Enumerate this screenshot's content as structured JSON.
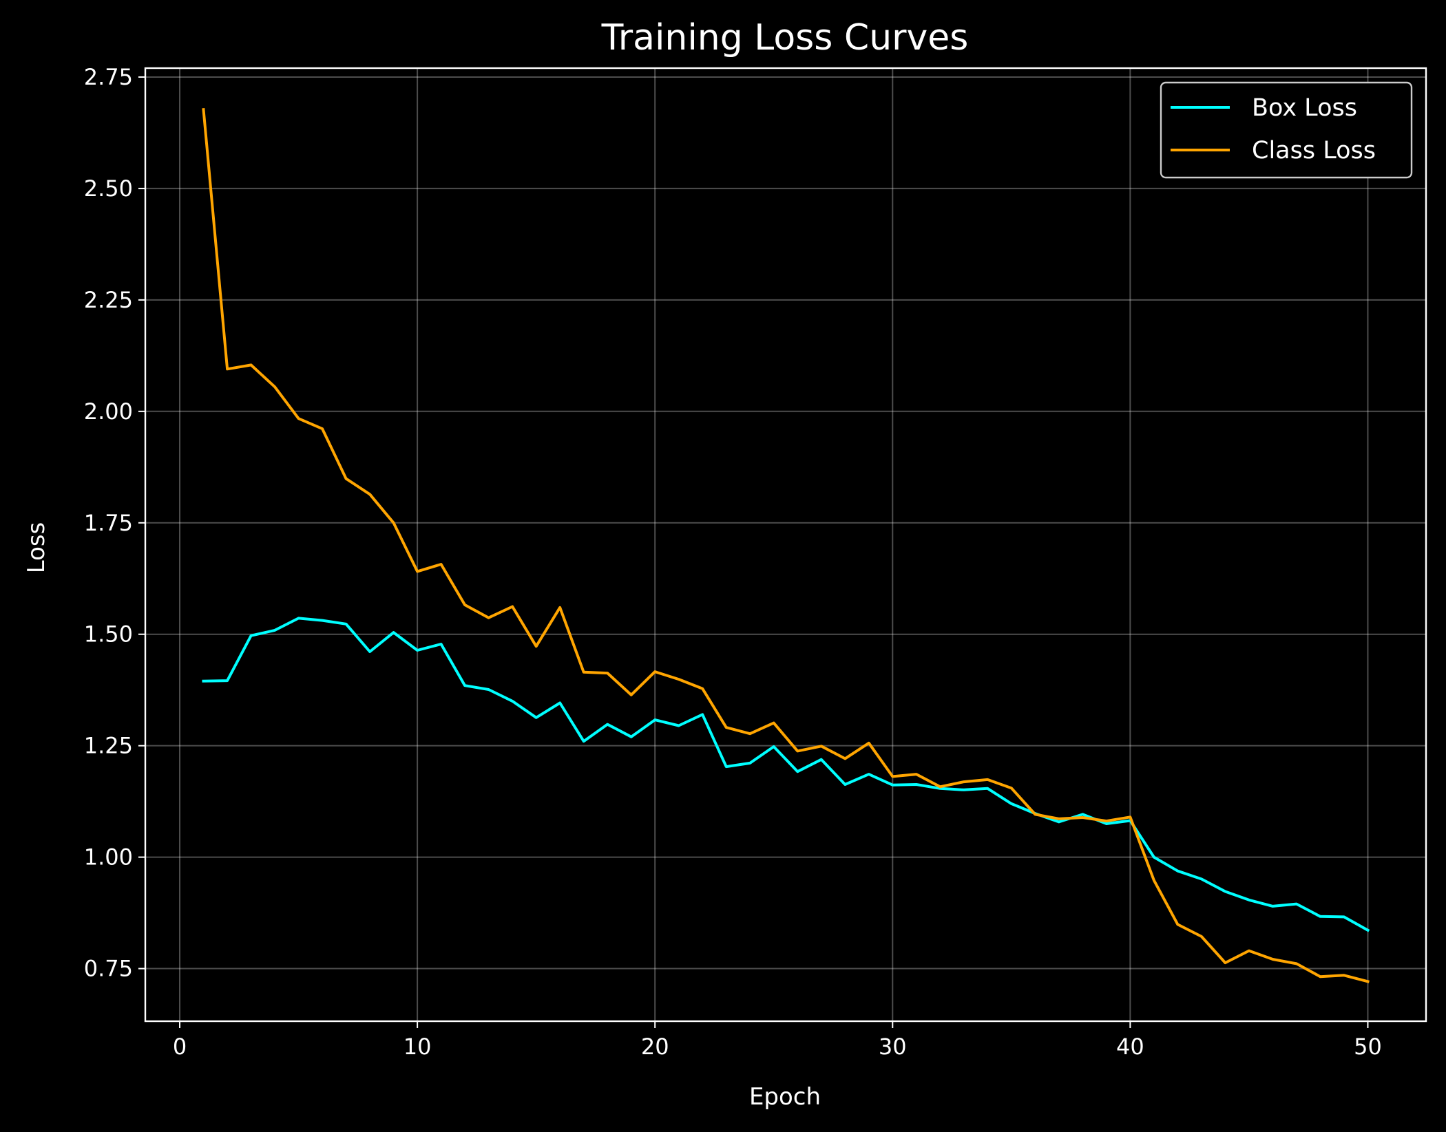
{
  "chart_data": {
    "type": "line",
    "title": "Training Loss Curves",
    "xlabel": "Epoch",
    "ylabel": "Loss",
    "xlim": [
      -1.45,
      52.45
    ],
    "ylim": [
      0.632,
      2.77
    ],
    "xticks": [
      0,
      10,
      20,
      30,
      40,
      50
    ],
    "yticks": [
      0.75,
      1.0,
      1.25,
      1.5,
      1.75,
      2.0,
      2.25,
      2.5,
      2.75
    ],
    "ytick_labels": [
      "0.75",
      "1.00",
      "1.25",
      "1.50",
      "1.75",
      "2.00",
      "2.25",
      "2.50",
      "2.75"
    ],
    "grid": true,
    "legend_position": "top-right",
    "x": [
      1,
      2,
      3,
      4,
      5,
      6,
      7,
      8,
      9,
      10,
      11,
      12,
      13,
      14,
      15,
      16,
      17,
      18,
      19,
      20,
      21,
      22,
      23,
      24,
      25,
      26,
      27,
      28,
      29,
      30,
      31,
      32,
      33,
      34,
      35,
      36,
      37,
      38,
      39,
      40,
      41,
      42,
      43,
      44,
      45,
      46,
      47,
      48,
      49,
      50
    ],
    "series": [
      {
        "name": "Box Loss",
        "color": "#00ffff",
        "values": [
          1.395,
          1.396,
          1.497,
          1.509,
          1.536,
          1.531,
          1.523,
          1.461,
          1.504,
          1.464,
          1.478,
          1.385,
          1.376,
          1.35,
          1.313,
          1.346,
          1.26,
          1.298,
          1.27,
          1.308,
          1.295,
          1.32,
          1.203,
          1.211,
          1.248,
          1.192,
          1.219,
          1.163,
          1.186,
          1.162,
          1.163,
          1.154,
          1.151,
          1.154,
          1.12,
          1.098,
          1.079,
          1.096,
          1.075,
          1.082,
          1.0,
          0.969,
          0.951,
          0.923,
          0.904,
          0.89,
          0.895,
          0.867,
          0.866,
          0.836
        ]
      },
      {
        "name": "Class Loss",
        "color": "#ffa500",
        "values": [
          2.677,
          2.095,
          2.104,
          2.055,
          1.984,
          1.961,
          1.849,
          1.814,
          1.75,
          1.641,
          1.657,
          1.566,
          1.537,
          1.562,
          1.473,
          1.56,
          1.415,
          1.413,
          1.364,
          1.416,
          1.399,
          1.378,
          1.291,
          1.277,
          1.301,
          1.238,
          1.249,
          1.221,
          1.256,
          1.181,
          1.186,
          1.158,
          1.169,
          1.174,
          1.155,
          1.096,
          1.086,
          1.089,
          1.081,
          1.09,
          0.948,
          0.849,
          0.822,
          0.763,
          0.79,
          0.771,
          0.761,
          0.732,
          0.735,
          0.721
        ]
      }
    ]
  }
}
